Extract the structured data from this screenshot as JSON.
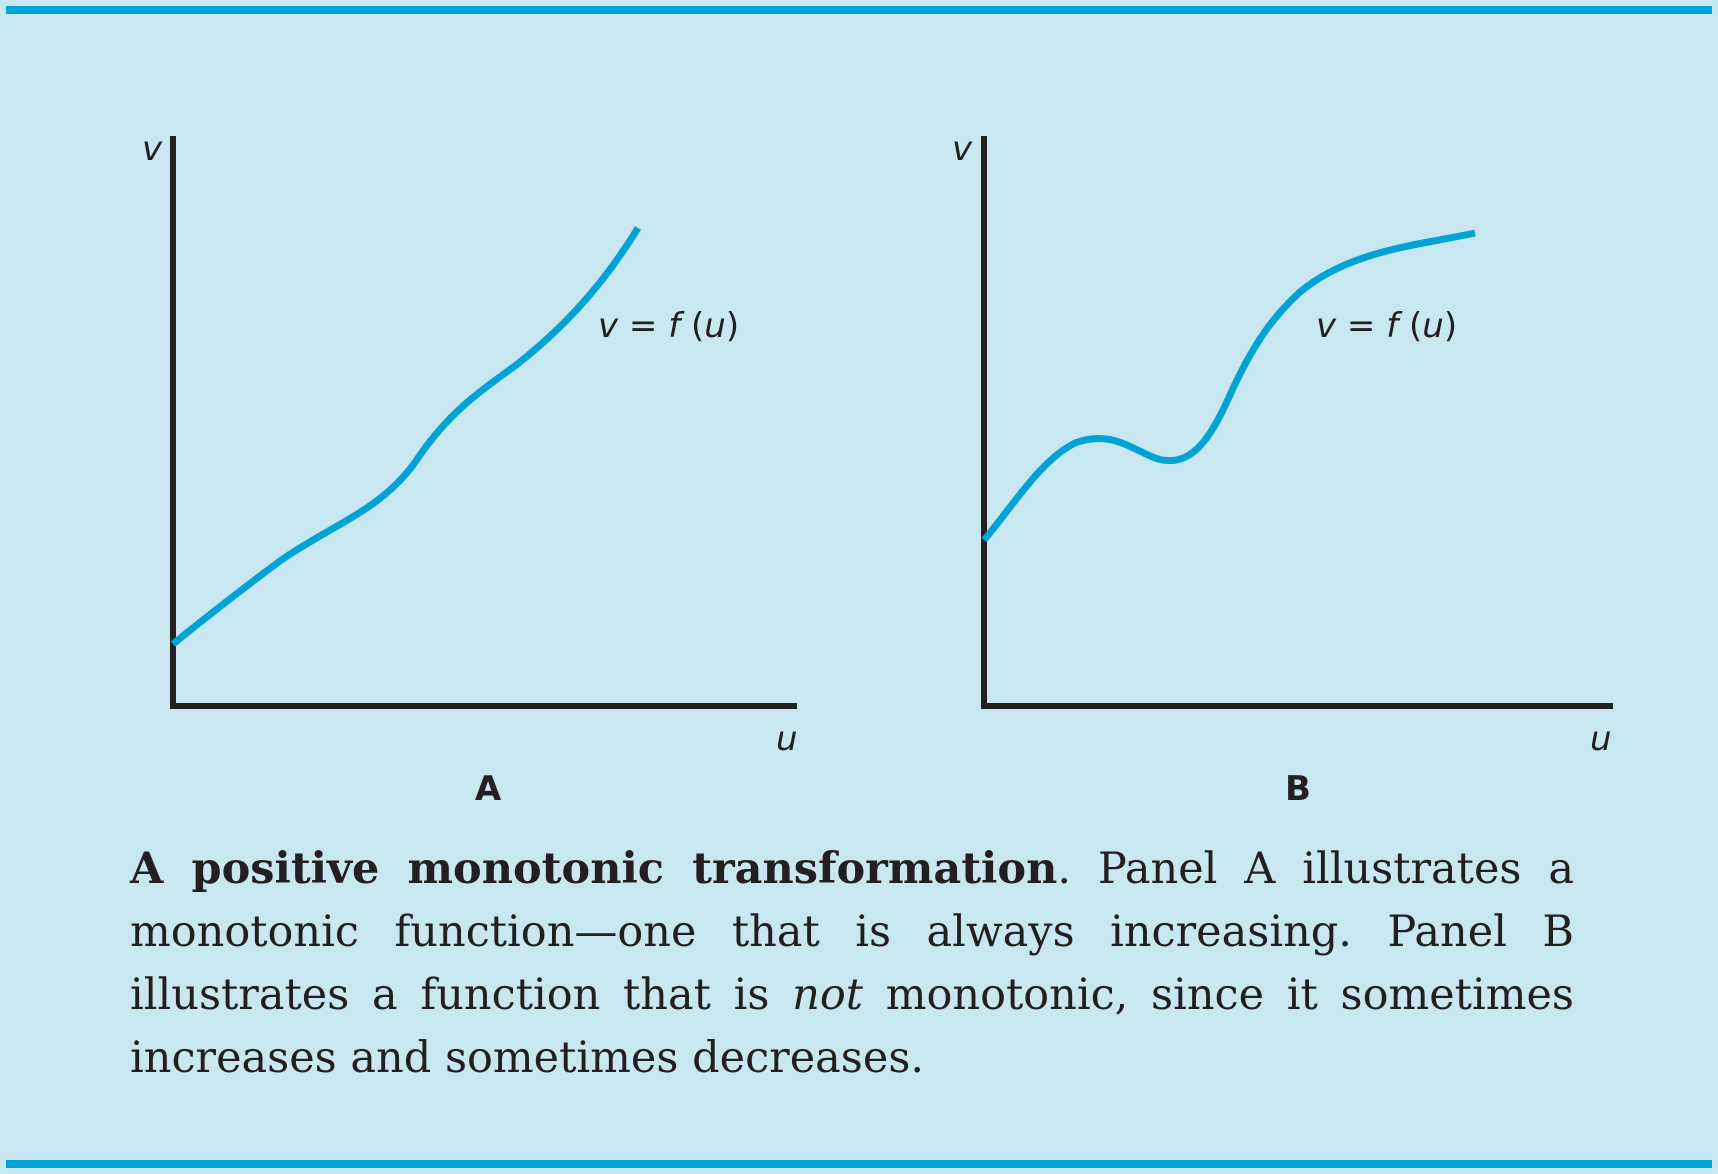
{
  "colors": {
    "background": "#c8e7f0",
    "rule": "#00a3d4",
    "curve": "#00a3d4",
    "axis": "#231f20"
  },
  "panels": [
    {
      "letter": "A",
      "y_axis_label": "v",
      "x_axis_label": "u",
      "curve_label": {
        "lhs": "v",
        "eq": " = ",
        "f": "f",
        "open": " (",
        "arg": "u",
        "close": ")"
      }
    },
    {
      "letter": "B",
      "y_axis_label": "v",
      "x_axis_label": "u",
      "curve_label": {
        "lhs": "v",
        "eq": " = ",
        "f": "f",
        "open": " (",
        "arg": "u",
        "close": ")"
      }
    }
  ],
  "caption": {
    "title": "A positive monotonic transformation",
    "after_title": ".  Panel A illustrates a monotonic function—one that is always increasing. Panel B illustrates a function that is ",
    "emphasis": "not",
    "rest": " monotonic, since it sometimes increases and sometimes decreases."
  }
}
